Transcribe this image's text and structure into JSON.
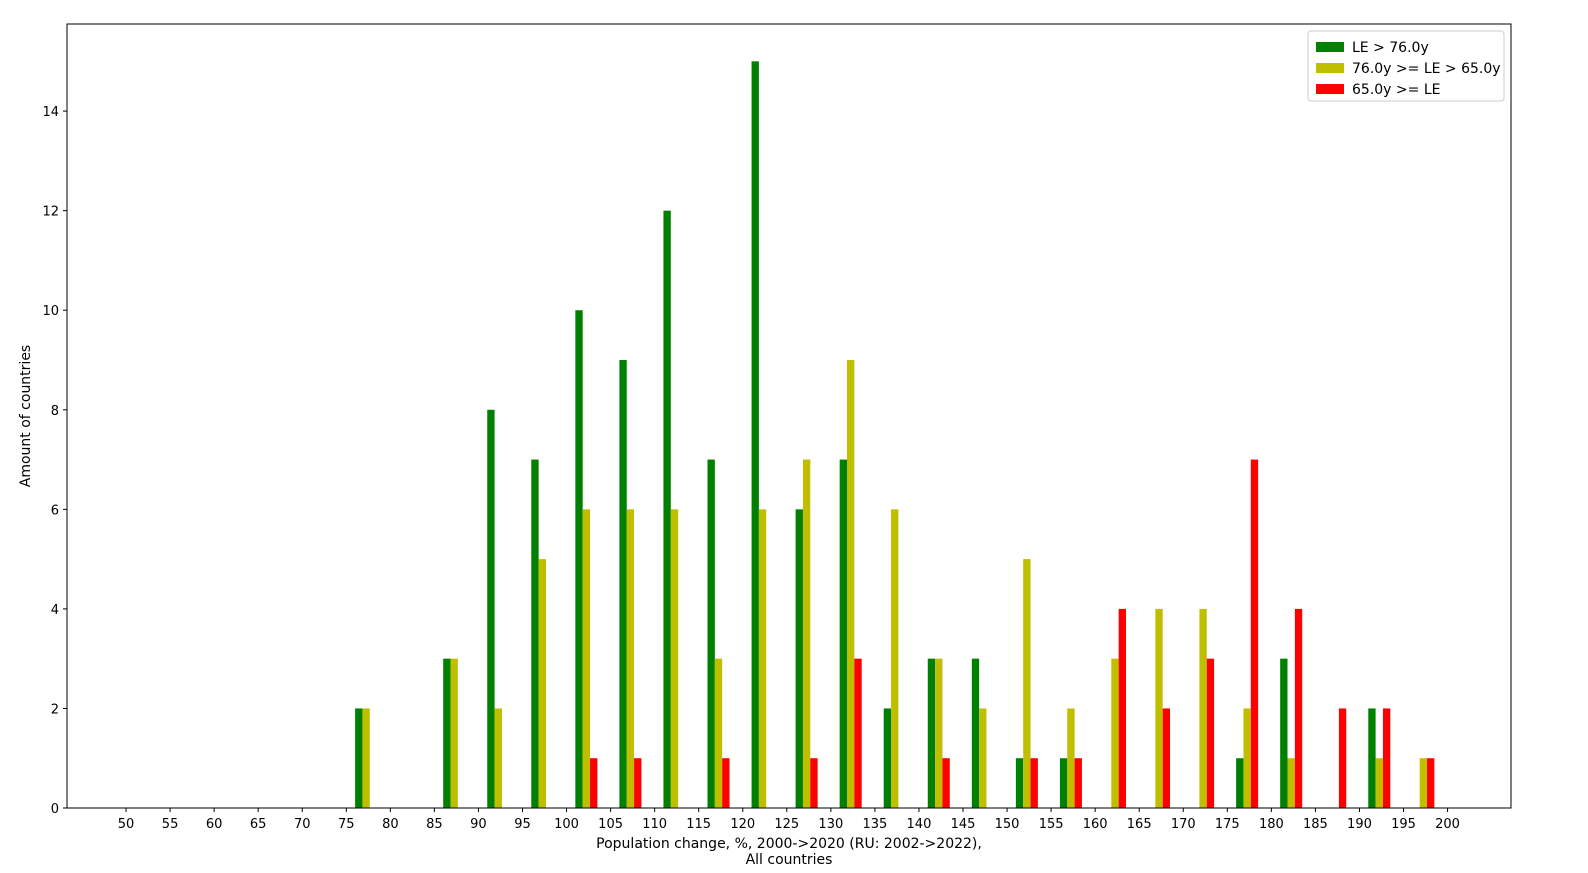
{
  "chart_data": {
    "type": "bar",
    "xlabel_line1": "Population change, %, 2000->2020 (RU: 2002->2022),",
    "xlabel_line2": "All countries",
    "ylabel": "Amount of countries",
    "xticks": [
      50,
      55,
      60,
      65,
      70,
      75,
      80,
      85,
      90,
      95,
      100,
      105,
      110,
      115,
      120,
      125,
      130,
      135,
      140,
      145,
      150,
      155,
      160,
      165,
      170,
      175,
      180,
      185,
      190,
      195,
      200
    ],
    "yticks": [
      0,
      2,
      4,
      6,
      8,
      10,
      12,
      14
    ],
    "xlim": [
      43.3,
      207.2
    ],
    "ylim": [
      0,
      15.75
    ],
    "bin_width": 5,
    "legend_position": "top-right",
    "bin_starts": [
      75,
      85,
      90,
      95,
      100,
      105,
      110,
      115,
      120,
      125,
      130,
      135,
      140,
      145,
      150,
      155,
      160,
      165,
      170,
      175,
      180,
      185,
      190,
      195
    ],
    "series": [
      {
        "name": "LE > 76.0y",
        "color": "#008000",
        "values": [
          2,
          3,
          8,
          7,
          10,
          9,
          12,
          7,
          15,
          6,
          7,
          2,
          3,
          3,
          1,
          1,
          0,
          0,
          0,
          1,
          3,
          0,
          2,
          0
        ]
      },
      {
        "name": "76.0y >= LE > 65.0y",
        "color": "#bfbf00",
        "values": [
          2,
          3,
          2,
          5,
          6,
          6,
          6,
          3,
          6,
          7,
          9,
          6,
          3,
          2,
          5,
          2,
          3,
          4,
          4,
          2,
          1,
          0,
          1,
          1
        ]
      },
      {
        "name": "65.0y >= LE",
        "color": "#ff0000",
        "values": [
          0,
          0,
          0,
          0,
          1,
          1,
          0,
          1,
          0,
          1,
          3,
          0,
          1,
          0,
          1,
          1,
          4,
          2,
          3,
          7,
          4,
          2,
          2,
          1
        ]
      }
    ]
  }
}
